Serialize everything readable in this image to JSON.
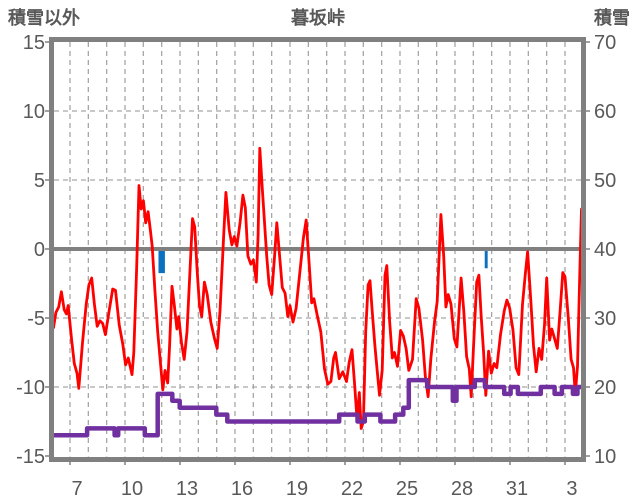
{
  "header": {
    "left_axis_label": "積雪以外",
    "title": "暮坂峠",
    "right_axis_label": "積雪"
  },
  "colors": {
    "temperature_line": "#ff0000",
    "snow_depth_line": "#7030a0",
    "precip_bar": "#0a70c0",
    "grid": "#a6a6a6",
    "frame": "#808080",
    "text": "#595959"
  },
  "chart_data": {
    "type": "line",
    "title": "暮坂峠",
    "grid": true,
    "legend": "none",
    "left_axis": {
      "label": "積雪以外",
      "min": -15,
      "max": 15,
      "ticks": [
        15,
        10,
        5,
        0,
        -5,
        -10,
        -15
      ]
    },
    "right_axis": {
      "label": "積雪",
      "min": 10,
      "max": 70,
      "ticks": [
        70,
        60,
        50,
        40,
        30,
        20,
        10
      ]
    },
    "x_axis": {
      "tick_days": [
        7,
        10,
        13,
        16,
        19,
        22,
        25,
        28,
        31,
        34
      ],
      "tick_labels": [
        "7",
        "10",
        "13",
        "16",
        "19",
        "22",
        "25",
        "28",
        "31",
        "3"
      ],
      "domain": [
        5.72,
        34.65
      ]
    },
    "series": [
      {
        "id": "temperature-red",
        "axis": "left",
        "kind": "line",
        "points": [
          [
            5.72,
            -5.7
          ],
          [
            5.85,
            -4.6
          ],
          [
            6.0,
            -4.2
          ],
          [
            6.15,
            -3.1
          ],
          [
            6.3,
            -4.4
          ],
          [
            6.42,
            -4.7
          ],
          [
            6.52,
            -4.1
          ],
          [
            6.7,
            -6.5
          ],
          [
            6.85,
            -8.3
          ],
          [
            7.0,
            -9.0
          ],
          [
            7.1,
            -10.1
          ],
          [
            7.3,
            -6.8
          ],
          [
            7.5,
            -4.0
          ],
          [
            7.65,
            -2.6
          ],
          [
            7.8,
            -2.1
          ],
          [
            7.95,
            -4.0
          ],
          [
            8.1,
            -5.6
          ],
          [
            8.25,
            -5.2
          ],
          [
            8.4,
            -5.4
          ],
          [
            8.55,
            -6.2
          ],
          [
            8.75,
            -4.5
          ],
          [
            8.95,
            -2.9
          ],
          [
            9.1,
            -3.0
          ],
          [
            9.3,
            -5.5
          ],
          [
            9.5,
            -6.9
          ],
          [
            9.65,
            -8.4
          ],
          [
            9.8,
            -7.9
          ],
          [
            10.0,
            -9.1
          ],
          [
            10.1,
            -7.5
          ],
          [
            10.25,
            -1.5
          ],
          [
            10.38,
            4.6
          ],
          [
            10.5,
            2.9
          ],
          [
            10.62,
            3.5
          ],
          [
            10.75,
            1.9
          ],
          [
            10.88,
            2.7
          ],
          [
            11.0,
            1.4
          ],
          [
            11.1,
            0.2
          ],
          [
            11.25,
            -3.0
          ],
          [
            11.4,
            -6.0
          ],
          [
            11.55,
            -8.2
          ],
          [
            11.68,
            -10.2
          ],
          [
            11.8,
            -8.8
          ],
          [
            11.95,
            -9.7
          ],
          [
            12.05,
            -7.0
          ],
          [
            12.18,
            -2.7
          ],
          [
            12.3,
            -4.0
          ],
          [
            12.45,
            -5.8
          ],
          [
            12.55,
            -4.9
          ],
          [
            12.7,
            -6.8
          ],
          [
            12.85,
            -8.0
          ],
          [
            13.0,
            -6.0
          ],
          [
            13.15,
            -2.0
          ],
          [
            13.3,
            2.2
          ],
          [
            13.42,
            1.6
          ],
          [
            13.55,
            -1.5
          ],
          [
            13.68,
            -4.1
          ],
          [
            13.8,
            -4.9
          ],
          [
            13.95,
            -2.4
          ],
          [
            14.1,
            -3.3
          ],
          [
            14.3,
            -5.3
          ],
          [
            14.5,
            -6.5
          ],
          [
            14.65,
            -7.2
          ],
          [
            14.8,
            -4.5
          ],
          [
            15.0,
            1.0
          ],
          [
            15.12,
            4.1
          ],
          [
            15.3,
            1.4
          ],
          [
            15.45,
            0.3
          ],
          [
            15.58,
            0.9
          ],
          [
            15.72,
            0.2
          ],
          [
            15.9,
            2.0
          ],
          [
            16.05,
            3.9
          ],
          [
            16.18,
            3.0
          ],
          [
            16.32,
            -0.5
          ],
          [
            16.48,
            -1.1
          ],
          [
            16.62,
            -0.8
          ],
          [
            16.78,
            -2.4
          ],
          [
            16.88,
            1.0
          ],
          [
            16.97,
            7.3
          ],
          [
            17.1,
            4.5
          ],
          [
            17.2,
            2.5
          ],
          [
            17.35,
            -0.5
          ],
          [
            17.48,
            -2.6
          ],
          [
            17.62,
            -3.3
          ],
          [
            17.78,
            -0.5
          ],
          [
            17.9,
            1.9
          ],
          [
            18.05,
            -0.5
          ],
          [
            18.2,
            -2.8
          ],
          [
            18.35,
            -3.2
          ],
          [
            18.5,
            -4.9
          ],
          [
            18.62,
            -4.1
          ],
          [
            18.78,
            -5.3
          ],
          [
            18.95,
            -4.3
          ],
          [
            19.15,
            -1.8
          ],
          [
            19.35,
            0.8
          ],
          [
            19.5,
            2.1
          ],
          [
            19.65,
            -0.8
          ],
          [
            19.8,
            -3.9
          ],
          [
            19.92,
            -3.6
          ],
          [
            20.1,
            -4.8
          ],
          [
            20.3,
            -6.0
          ],
          [
            20.5,
            -8.7
          ],
          [
            20.68,
            -9.8
          ],
          [
            20.85,
            -9.6
          ],
          [
            21.0,
            -7.9
          ],
          [
            21.1,
            -7.5
          ],
          [
            21.3,
            -9.4
          ],
          [
            21.5,
            -8.9
          ],
          [
            21.7,
            -9.6
          ],
          [
            21.85,
            -8.2
          ],
          [
            22.0,
            -7.3
          ],
          [
            22.15,
            -9.9
          ],
          [
            22.28,
            -12.4
          ],
          [
            22.4,
            -10.4
          ],
          [
            22.5,
            -13.0
          ],
          [
            22.62,
            -12.5
          ],
          [
            22.75,
            -6.0
          ],
          [
            22.88,
            -2.6
          ],
          [
            22.98,
            -2.3
          ],
          [
            23.1,
            -4.5
          ],
          [
            23.25,
            -7.0
          ],
          [
            23.38,
            -8.9
          ],
          [
            23.5,
            -10.6
          ],
          [
            23.65,
            -8.8
          ],
          [
            23.8,
            -1.9
          ],
          [
            23.9,
            -1.2
          ],
          [
            24.05,
            -5.2
          ],
          [
            24.2,
            -7.9
          ],
          [
            24.32,
            -7.5
          ],
          [
            24.48,
            -8.5
          ],
          [
            24.65,
            -5.9
          ],
          [
            24.8,
            -6.3
          ],
          [
            24.95,
            -7.2
          ],
          [
            25.1,
            -8.8
          ],
          [
            25.3,
            -8.0
          ],
          [
            25.5,
            -3.6
          ],
          [
            25.65,
            -4.3
          ],
          [
            25.85,
            -6.6
          ],
          [
            26.0,
            -9.2
          ],
          [
            26.15,
            -10.7
          ],
          [
            26.3,
            -8.0
          ],
          [
            26.5,
            -5.3
          ],
          [
            26.65,
            -3.8
          ],
          [
            26.85,
            2.5
          ],
          [
            27.0,
            -0.5
          ],
          [
            27.12,
            -4.2
          ],
          [
            27.25,
            -3.3
          ],
          [
            27.4,
            -4.0
          ],
          [
            27.58,
            -6.5
          ],
          [
            27.72,
            -7.1
          ],
          [
            27.95,
            -2.1
          ],
          [
            28.1,
            -4.5
          ],
          [
            28.25,
            -7.8
          ],
          [
            28.4,
            -8.7
          ],
          [
            28.5,
            -10.7
          ],
          [
            28.65,
            -6.5
          ],
          [
            28.8,
            -2.4
          ],
          [
            28.92,
            -1.9
          ],
          [
            29.05,
            -4.9
          ],
          [
            29.18,
            -7.5
          ],
          [
            29.3,
            -10.6
          ],
          [
            29.45,
            -7.4
          ],
          [
            29.6,
            -9.0
          ],
          [
            29.75,
            -8.3
          ],
          [
            29.9,
            -8.6
          ],
          [
            30.1,
            -6.2
          ],
          [
            30.3,
            -4.5
          ],
          [
            30.45,
            -3.7
          ],
          [
            30.6,
            -4.3
          ],
          [
            30.78,
            -5.9
          ],
          [
            30.95,
            -8.6
          ],
          [
            31.1,
            -9.1
          ],
          [
            31.3,
            -4.0
          ],
          [
            31.45,
            -1.9
          ],
          [
            31.58,
            -0.2
          ],
          [
            31.75,
            -3.6
          ],
          [
            31.9,
            -7.0
          ],
          [
            32.05,
            -8.9
          ],
          [
            32.2,
            -7.2
          ],
          [
            32.35,
            -8.0
          ],
          [
            32.5,
            -5.5
          ],
          [
            32.62,
            -2.1
          ],
          [
            32.78,
            -6.6
          ],
          [
            32.9,
            -5.8
          ],
          [
            33.05,
            -6.5
          ],
          [
            33.2,
            -7.2
          ],
          [
            33.35,
            -4.5
          ],
          [
            33.5,
            -1.7
          ],
          [
            33.62,
            -2.0
          ],
          [
            33.8,
            -5.0
          ],
          [
            33.95,
            -8.0
          ],
          [
            34.08,
            -8.6
          ],
          [
            34.18,
            -10.5
          ],
          [
            34.3,
            -8.5
          ],
          [
            34.42,
            -2.0
          ],
          [
            34.52,
            2.9
          ],
          [
            34.6,
            -0.5
          ],
          [
            34.65,
            -3.4
          ]
        ]
      },
      {
        "id": "snow-depth-purple",
        "axis": "right",
        "kind": "step",
        "points": [
          [
            5.72,
            13
          ],
          [
            7.55,
            14
          ],
          [
            9.05,
            13
          ],
          [
            9.25,
            14
          ],
          [
            10.7,
            13
          ],
          [
            11.15,
            13
          ],
          [
            11.4,
            19
          ],
          [
            12.2,
            18
          ],
          [
            12.6,
            17
          ],
          [
            14.6,
            16
          ],
          [
            15.2,
            15
          ],
          [
            21.3,
            16
          ],
          [
            22.3,
            15
          ],
          [
            22.7,
            16
          ],
          [
            23.55,
            15
          ],
          [
            24.35,
            16
          ],
          [
            24.8,
            17
          ],
          [
            25.1,
            21
          ],
          [
            26.1,
            20
          ],
          [
            27.5,
            18
          ],
          [
            27.7,
            20
          ],
          [
            28.7,
            21
          ],
          [
            29.25,
            20
          ],
          [
            30.3,
            19
          ],
          [
            30.65,
            20
          ],
          [
            31.05,
            19
          ],
          [
            32.3,
            20
          ],
          [
            33.05,
            19
          ],
          [
            33.45,
            20
          ],
          [
            34.05,
            19
          ],
          [
            34.3,
            20
          ],
          [
            34.65,
            20
          ]
        ]
      },
      {
        "id": "precip-blue-marks",
        "axis": "left",
        "kind": "bar",
        "points": [
          {
            "day": 11.62,
            "top": 0,
            "bottom": -0.95,
            "width_days": 0.35
          },
          {
            "day": 29.32,
            "top": 0,
            "bottom": -0.6,
            "width_days": 0.16
          }
        ]
      }
    ]
  }
}
